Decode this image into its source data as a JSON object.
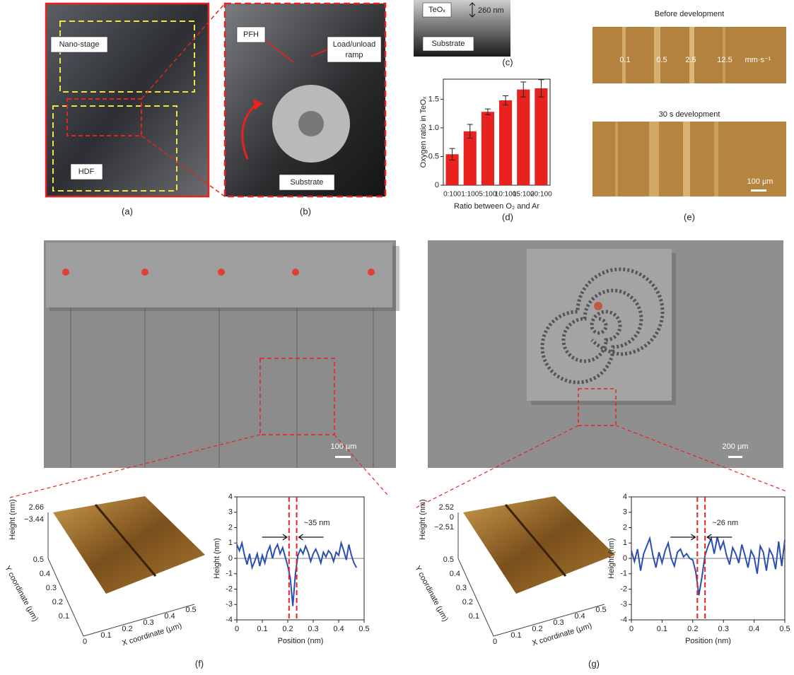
{
  "figure": {
    "a": {
      "label": "(a)",
      "nano_stage": "Nano-stage",
      "hdf": "HDF"
    },
    "b": {
      "label": "(b)",
      "pfh": "PFH",
      "ramp": [
        "Load/unload",
        "ramp"
      ],
      "substrate": "Substrate"
    },
    "c": {
      "label": "(c)",
      "layer": "TeOₓ",
      "thickness": "260 nm",
      "substrate": "Substrate"
    },
    "d": {
      "label": "(d)"
    },
    "e": {
      "label": "(e)",
      "top_title": "Before development",
      "speeds": [
        "0.1",
        "0.5",
        "2.5",
        "12.5"
      ],
      "unit": "mm·s⁻¹",
      "bottom_title": "30 s development",
      "scale": "100 μm"
    },
    "f": {
      "label": "(f)",
      "scale": "100 μm",
      "afm": {
        "z_label": "Height (nm)",
        "z_ticks": [
          "2.66",
          "−3.44"
        ],
        "y_label": "Y coordinate (μm)",
        "y_ticks": [
          "0.5",
          "0.4",
          "0.3",
          "0.2",
          "0.1"
        ],
        "x_label": "X coordinate (μm)",
        "x_ticks": [
          "0",
          "0.1",
          "0.2",
          "0.3",
          "0.4",
          "0.5"
        ]
      }
    },
    "g": {
      "label": "(g)",
      "scale": "200 μm",
      "afm": {
        "z_label": "Height (nm)",
        "z_ticks": [
          "2.52",
          "0",
          "−2.51"
        ],
        "y_label": "Y coordinate (μm)",
        "y_ticks": [
          "0.5",
          "0.4",
          "0.3",
          "0.2",
          "0.1"
        ],
        "x_label": "X coordinate (μm)",
        "x_ticks": [
          "0",
          "0.1",
          "0.2",
          "0.3",
          "0.4",
          "0.5"
        ]
      }
    }
  },
  "chart_data": [
    {
      "type": "bar",
      "ylabel": "Oxygen ratio in TeOₓ",
      "xlabel": "Ratio between O₂ and Ar",
      "categories": [
        "0:100",
        "1:100",
        "5:100",
        "10:100",
        "15:100",
        "20:100"
      ],
      "values": [
        0.54,
        0.94,
        1.28,
        1.48,
        1.67,
        1.69
      ],
      "errors": [
        0.1,
        0.12,
        0.05,
        0.08,
        0.13,
        0.15
      ],
      "color": "#e8221f",
      "ylim": [
        0,
        1.85
      ],
      "yticks": [
        0,
        0.5,
        {
          "value": 1,
          "label": "1.0"
        },
        1.5
      ]
    },
    {
      "type": "line",
      "ylabel": "Height (nm)",
      "xlabel": "Position (nm)",
      "annotation": "~35 nm",
      "color": "#2a4fb0",
      "x": [
        0,
        0.01,
        0.02,
        0.03,
        0.04,
        0.05,
        0.06,
        0.07,
        0.08,
        0.09,
        0.1,
        0.11,
        0.12,
        0.13,
        0.14,
        0.15,
        0.16,
        0.17,
        0.18,
        0.19,
        0.2,
        0.21,
        0.22,
        0.23,
        0.24,
        0.25,
        0.26,
        0.27,
        0.28,
        0.29,
        0.3,
        0.31,
        0.32,
        0.33,
        0.34,
        0.35,
        0.36,
        0.37,
        0.38,
        0.39,
        0.4,
        0.41,
        0.42,
        0.43,
        0.44,
        0.45,
        0.46,
        0.47
      ],
      "values": [
        0.9,
        0.5,
        1.0,
        0.2,
        -0.4,
        0.3,
        -0.6,
        -0.2,
        0.3,
        -0.5,
        0.2,
        -0.3,
        0.4,
        0.8,
        0.0,
        0.6,
        0.9,
        0.3,
        0.7,
        0.1,
        -0.5,
        -1.3,
        -3.1,
        -1.0,
        0.2,
        0.6,
        0.3,
        0.8,
        0.4,
        -0.2,
        0.3,
        0.6,
        0.2,
        -0.3,
        0.4,
        0.1,
        0.5,
        0.3,
        -0.2,
        0.4,
        0.2,
        1.0,
        0.5,
        -0.1,
        0.9,
        0.2,
        -0.3,
        -0.6
      ],
      "vlines": [
        0.205,
        0.235
      ],
      "hline": 0,
      "xlim": [
        0,
        0.5
      ],
      "ylim": [
        -4,
        4
      ],
      "xticks": [
        0,
        0.1,
        0.2,
        0.3,
        0.4,
        0.5
      ],
      "yticks": [
        -4,
        -3,
        -2,
        -1,
        0,
        1,
        2,
        3,
        4
      ]
    },
    {
      "type": "line",
      "ylabel": "Height (nm)",
      "xlabel": "Position (nm)",
      "annotation": "~26 nm",
      "color": "#2a4fb0",
      "x": [
        0,
        0.01,
        0.02,
        0.03,
        0.04,
        0.05,
        0.06,
        0.07,
        0.08,
        0.09,
        0.1,
        0.11,
        0.12,
        0.13,
        0.14,
        0.15,
        0.16,
        0.17,
        0.18,
        0.19,
        0.2,
        0.21,
        0.22,
        0.23,
        0.24,
        0.25,
        0.26,
        0.27,
        0.28,
        0.29,
        0.3,
        0.31,
        0.32,
        0.33,
        0.34,
        0.35,
        0.36,
        0.37,
        0.38,
        0.39,
        0.4,
        0.41,
        0.42,
        0.43,
        0.44,
        0.45,
        0.46,
        0.47,
        0.48,
        0.49,
        0.5
      ],
      "values": [
        0.5,
        -0.2,
        0.6,
        -0.8,
        0.3,
        0.8,
        1.3,
        0.2,
        -0.6,
        0.4,
        -0.3,
        0.5,
        1.0,
        0.0,
        -0.5,
        0.4,
        0.6,
        0.1,
        0.3,
        0.0,
        -0.1,
        -0.9,
        -2.4,
        -1.2,
        0.2,
        0.8,
        1.3,
        0.3,
        1.4,
        0.6,
        1.1,
        0.2,
        -0.4,
        0.7,
        0.3,
        -0.3,
        0.9,
        0.2,
        -0.6,
        0.5,
        0.1,
        -1.0,
        0.8,
        0.4,
        -0.8,
        0.6,
        0.2,
        -0.7,
        1.1,
        -0.5,
        1.2
      ],
      "vlines": [
        0.215,
        0.24
      ],
      "hline": 0,
      "xlim": [
        0,
        0.5
      ],
      "ylim": [
        -4,
        4
      ],
      "xticks": [
        0,
        0.1,
        0.2,
        0.3,
        0.4,
        0.5
      ],
      "yticks": [
        -4,
        -3,
        -2,
        -1,
        0,
        1,
        2,
        3,
        4
      ]
    }
  ]
}
